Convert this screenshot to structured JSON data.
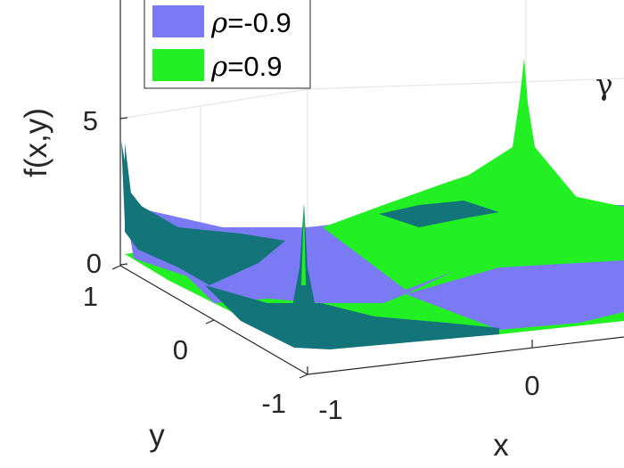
{
  "chart_data": {
    "type": "surface",
    "title": "",
    "xlabel": "x",
    "ylabel": "y",
    "zlabel": "f(x,y)",
    "corner_label": "γ",
    "x_ticks": [
      "-1",
      "0"
    ],
    "y_ticks": [
      "1",
      "0",
      "-1"
    ],
    "z_ticks": [
      "0",
      "5"
    ],
    "xlim": [
      -1,
      1
    ],
    "ylim": [
      -1,
      1
    ],
    "zlim": [
      0,
      8
    ],
    "grid": true,
    "legend_position": "top-left",
    "series": [
      {
        "label_prefix": "ρ",
        "label_value": "=-0.9",
        "color": "#7a7af5",
        "rho": -0.9
      },
      {
        "label_prefix": "ρ",
        "label_value": "=0.9",
        "color": "#22f022",
        "rho": 0.9
      }
    ],
    "overlap_color": "#13747a"
  }
}
